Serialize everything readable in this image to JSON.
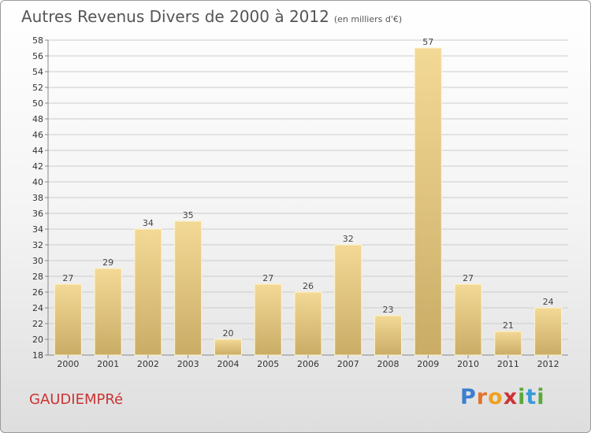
{
  "header": {
    "title": "Autres Revenus Divers de 2000 à 2012",
    "unit": "(en milliers d'€)"
  },
  "commune": "GAUDIEMPRé",
  "logo": {
    "text": "Proxiti"
  },
  "colors": {
    "bar_light": "#f3d996",
    "bar_dark": "#c9ac66",
    "bar_edge": "#fff3c8",
    "grid": "#cccccc",
    "axis": "#888888"
  },
  "chart_data": {
    "type": "bar",
    "title": "Autres Revenus Divers de 2000 à 2012",
    "subtitle": "(en milliers d'€)",
    "xlabel": "",
    "ylabel": "",
    "categories": [
      "2000",
      "2001",
      "2002",
      "2003",
      "2004",
      "2005",
      "2006",
      "2007",
      "2008",
      "2009",
      "2010",
      "2011",
      "2012"
    ],
    "values": [
      27,
      29,
      34,
      35,
      20,
      27,
      26,
      32,
      23,
      57,
      27,
      21,
      24
    ],
    "ylim": [
      18,
      58
    ],
    "ytick_step": 2,
    "grid": true,
    "legend": "none"
  }
}
